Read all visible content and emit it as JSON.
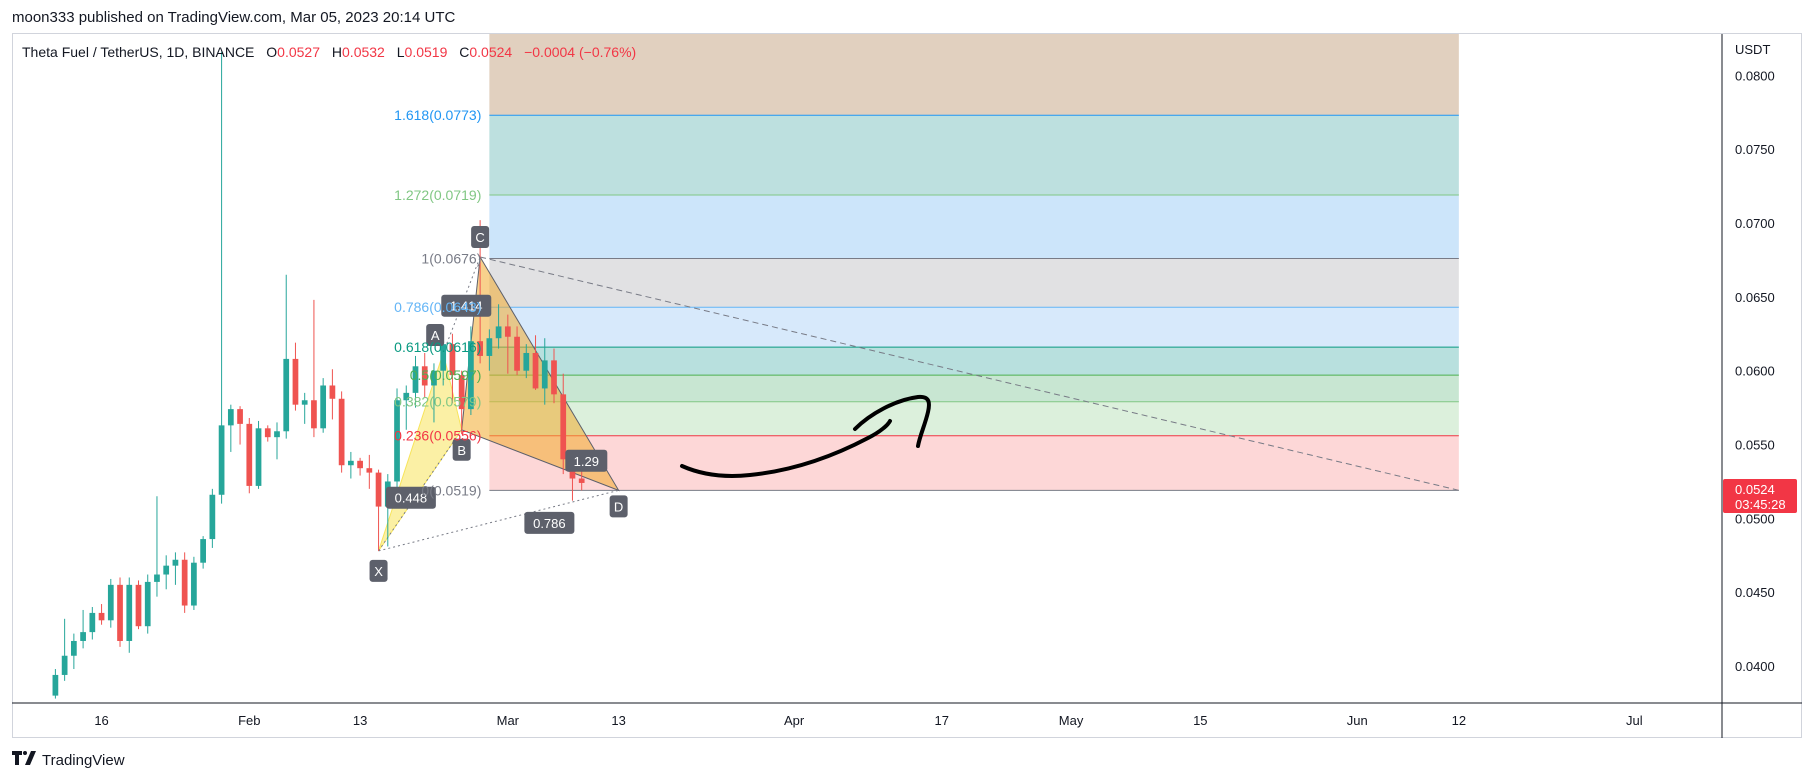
{
  "header": {
    "published_by": "moon333 published on TradingView.com, Mar 05, 2023 20:14 UTC"
  },
  "legend": {
    "symbol": "Theta Fuel / TetherUS, 1D, BINANCE",
    "open_label": "O",
    "open": "0.0527",
    "high_label": "H",
    "high": "0.0532",
    "low_label": "L",
    "low": "0.0519",
    "close_label": "C",
    "close": "0.0524",
    "change": "−0.0004 (−0.76%)"
  },
  "price_axis": {
    "currency": "USDT",
    "ticks": [
      {
        "value": 0.08,
        "label": "0.0800"
      },
      {
        "value": 0.075,
        "label": "0.0750"
      },
      {
        "value": 0.07,
        "label": "0.0700"
      },
      {
        "value": 0.065,
        "label": "0.0650"
      },
      {
        "value": 0.06,
        "label": "0.0600"
      },
      {
        "value": 0.055,
        "label": "0.0550"
      },
      {
        "value": 0.05,
        "label": "0.0500"
      },
      {
        "value": 0.045,
        "label": "0.0450"
      },
      {
        "value": 0.04,
        "label": "0.0400"
      }
    ],
    "last_price_label": "0.0524",
    "countdown_label": "03:45:28",
    "last_price_color": "#f23645"
  },
  "time_axis": {
    "ticks": [
      {
        "day": 16,
        "label": "16"
      },
      {
        "day": 32,
        "label": "Feb"
      },
      {
        "day": 44,
        "label": "13"
      },
      {
        "day": 60,
        "label": "Mar"
      },
      {
        "day": 72,
        "label": "13"
      },
      {
        "day": 91,
        "label": "Apr"
      },
      {
        "day": 107,
        "label": "17"
      },
      {
        "day": 121,
        "label": "May"
      },
      {
        "day": 135,
        "label": "15"
      },
      {
        "day": 152,
        "label": "Jun"
      },
      {
        "day": 163,
        "label": "12"
      },
      {
        "day": 182,
        "label": "Jul"
      }
    ]
  },
  "chart_data": {
    "type": "candlestick",
    "x_unit": "day of year 2023",
    "y_unit": "USDT",
    "ylim": [
      0.0375,
      0.0828
    ],
    "xlim": [
      6.3,
      191.5
    ],
    "candles": [
      {
        "d": 11,
        "o": 0.038,
        "h": 0.0398,
        "l": 0.0378,
        "c": 0.0394
      },
      {
        "d": 12,
        "o": 0.0394,
        "h": 0.0432,
        "l": 0.039,
        "c": 0.0407
      },
      {
        "d": 13,
        "o": 0.0407,
        "h": 0.0422,
        "l": 0.0398,
        "c": 0.0417
      },
      {
        "d": 14,
        "o": 0.0417,
        "h": 0.0438,
        "l": 0.0412,
        "c": 0.0423
      },
      {
        "d": 15,
        "o": 0.0423,
        "h": 0.044,
        "l": 0.0418,
        "c": 0.0436
      },
      {
        "d": 16,
        "o": 0.0436,
        "h": 0.0442,
        "l": 0.0428,
        "c": 0.0431
      },
      {
        "d": 17,
        "o": 0.0431,
        "h": 0.0459,
        "l": 0.0426,
        "c": 0.0455
      },
      {
        "d": 18,
        "o": 0.0455,
        "h": 0.046,
        "l": 0.0413,
        "c": 0.0417
      },
      {
        "d": 19,
        "o": 0.0417,
        "h": 0.046,
        "l": 0.0409,
        "c": 0.0455
      },
      {
        "d": 20,
        "o": 0.0455,
        "h": 0.0458,
        "l": 0.0425,
        "c": 0.0427
      },
      {
        "d": 21,
        "o": 0.0427,
        "h": 0.0462,
        "l": 0.0422,
        "c": 0.0457
      },
      {
        "d": 22,
        "o": 0.0457,
        "h": 0.0515,
        "l": 0.0447,
        "c": 0.0462
      },
      {
        "d": 23,
        "o": 0.0462,
        "h": 0.0475,
        "l": 0.0452,
        "c": 0.0468
      },
      {
        "d": 24,
        "o": 0.0468,
        "h": 0.0477,
        "l": 0.0455,
        "c": 0.0472
      },
      {
        "d": 25,
        "o": 0.0472,
        "h": 0.0477,
        "l": 0.0436,
        "c": 0.0441
      },
      {
        "d": 26,
        "o": 0.0441,
        "h": 0.0474,
        "l": 0.0438,
        "c": 0.047
      },
      {
        "d": 27,
        "o": 0.047,
        "h": 0.0488,
        "l": 0.0466,
        "c": 0.0486
      },
      {
        "d": 28,
        "o": 0.0486,
        "h": 0.052,
        "l": 0.048,
        "c": 0.0516
      },
      {
        "d": 29,
        "o": 0.0516,
        "h": 0.0816,
        "l": 0.051,
        "c": 0.0563
      },
      {
        "d": 30,
        "o": 0.0563,
        "h": 0.0577,
        "l": 0.0545,
        "c": 0.0574
      },
      {
        "d": 31,
        "o": 0.0574,
        "h": 0.0576,
        "l": 0.055,
        "c": 0.0564
      },
      {
        "d": 32,
        "o": 0.0564,
        "h": 0.0568,
        "l": 0.0517,
        "c": 0.0522
      },
      {
        "d": 33,
        "o": 0.0522,
        "h": 0.0566,
        "l": 0.052,
        "c": 0.0561
      },
      {
        "d": 34,
        "o": 0.0561,
        "h": 0.0563,
        "l": 0.0552,
        "c": 0.0555
      },
      {
        "d": 35,
        "o": 0.0555,
        "h": 0.0565,
        "l": 0.054,
        "c": 0.0559
      },
      {
        "d": 36,
        "o": 0.0559,
        "h": 0.0665,
        "l": 0.0554,
        "c": 0.0608
      },
      {
        "d": 37,
        "o": 0.0608,
        "h": 0.0619,
        "l": 0.0573,
        "c": 0.0577
      },
      {
        "d": 38,
        "o": 0.0577,
        "h": 0.0585,
        "l": 0.0564,
        "c": 0.058
      },
      {
        "d": 39,
        "o": 0.058,
        "h": 0.0648,
        "l": 0.0555,
        "c": 0.0561
      },
      {
        "d": 40,
        "o": 0.0561,
        "h": 0.0595,
        "l": 0.0558,
        "c": 0.059
      },
      {
        "d": 41,
        "o": 0.059,
        "h": 0.0601,
        "l": 0.0567,
        "c": 0.0581
      },
      {
        "d": 42,
        "o": 0.0581,
        "h": 0.0586,
        "l": 0.0531,
        "c": 0.0536
      },
      {
        "d": 43,
        "o": 0.0536,
        "h": 0.0545,
        "l": 0.0527,
        "c": 0.0539
      },
      {
        "d": 44,
        "o": 0.0539,
        "h": 0.0541,
        "l": 0.0529,
        "c": 0.0534
      },
      {
        "d": 45,
        "o": 0.0534,
        "h": 0.0543,
        "l": 0.052,
        "c": 0.0531
      },
      {
        "d": 46,
        "o": 0.0531,
        "h": 0.0533,
        "l": 0.0478,
        "c": 0.0508
      },
      {
        "d": 47,
        "o": 0.0508,
        "h": 0.053,
        "l": 0.0481,
        "c": 0.0525
      },
      {
        "d": 48,
        "o": 0.0525,
        "h": 0.0588,
        "l": 0.052,
        "c": 0.058
      },
      {
        "d": 49,
        "o": 0.058,
        "h": 0.059,
        "l": 0.056,
        "c": 0.0585
      },
      {
        "d": 50,
        "o": 0.0585,
        "h": 0.061,
        "l": 0.0575,
        "c": 0.0603
      },
      {
        "d": 51,
        "o": 0.0603,
        "h": 0.0612,
        "l": 0.0582,
        "c": 0.059
      },
      {
        "d": 52,
        "o": 0.059,
        "h": 0.0605,
        "l": 0.0565,
        "c": 0.06
      },
      {
        "d": 53,
        "o": 0.06,
        "h": 0.0622,
        "l": 0.059,
        "c": 0.0618
      },
      {
        "d": 54,
        "o": 0.0618,
        "h": 0.0625,
        "l": 0.0578,
        "c": 0.0597
      },
      {
        "d": 55,
        "o": 0.0597,
        "h": 0.06,
        "l": 0.0557,
        "c": 0.0574
      },
      {
        "d": 56,
        "o": 0.0574,
        "h": 0.063,
        "l": 0.057,
        "c": 0.062
      },
      {
        "d": 57,
        "o": 0.062,
        "h": 0.0702,
        "l": 0.0605,
        "c": 0.061
      },
      {
        "d": 58,
        "o": 0.061,
        "h": 0.0628,
        "l": 0.06,
        "c": 0.0622
      },
      {
        "d": 59,
        "o": 0.0622,
        "h": 0.0645,
        "l": 0.0615,
        "c": 0.063
      },
      {
        "d": 60,
        "o": 0.063,
        "h": 0.0638,
        "l": 0.0598,
        "c": 0.0623
      },
      {
        "d": 61,
        "o": 0.0623,
        "h": 0.063,
        "l": 0.0597,
        "c": 0.06
      },
      {
        "d": 62,
        "o": 0.06,
        "h": 0.0618,
        "l": 0.0595,
        "c": 0.0612
      },
      {
        "d": 63,
        "o": 0.0612,
        "h": 0.0624,
        "l": 0.0587,
        "c": 0.0588
      },
      {
        "d": 64,
        "o": 0.0588,
        "h": 0.0622,
        "l": 0.0577,
        "c": 0.0607
      },
      {
        "d": 65,
        "o": 0.0607,
        "h": 0.0615,
        "l": 0.0578,
        "c": 0.0584
      },
      {
        "d": 66,
        "o": 0.0584,
        "h": 0.0598,
        "l": 0.053,
        "c": 0.054
      },
      {
        "d": 67,
        "o": 0.054,
        "h": 0.0545,
        "l": 0.0512,
        "c": 0.0527
      },
      {
        "d": 68,
        "o": 0.0527,
        "h": 0.0532,
        "l": 0.0519,
        "c": 0.0524
      }
    ]
  },
  "harmonic_pattern": {
    "points": [
      {
        "name": "X",
        "d": 46,
        "p": 0.0478
      },
      {
        "name": "A",
        "d": 53,
        "p": 0.0612
      },
      {
        "name": "B",
        "d": 55,
        "p": 0.056
      },
      {
        "name": "C",
        "d": 57,
        "p": 0.0677
      },
      {
        "name": "D",
        "d": 72,
        "p": 0.0519
      }
    ],
    "ratios": [
      {
        "label": "0.448",
        "d": 49.5,
        "p": 0.0514
      },
      {
        "label": "1.414",
        "d": 55.5,
        "p": 0.0644
      },
      {
        "label": "1.29",
        "d": 68.5,
        "p": 0.0539
      },
      {
        "label": "0.786",
        "d": 64.5,
        "p": 0.0497
      }
    ],
    "xab_color": "#f7e45b",
    "bcd_color": "#f3ac2d"
  },
  "fib_retracement": {
    "d_start": 58,
    "d_end": 163,
    "levels": [
      {
        "ratio_label": "0",
        "price_label": "0.0519",
        "price": 0.0519,
        "color": "#787b86",
        "fill": "#fdd7d7"
      },
      {
        "ratio_label": "0.236",
        "price_label": "0.0556",
        "price": 0.0556,
        "color": "#f23645",
        "fill": "#dcf0dc"
      },
      {
        "ratio_label": "0.382",
        "price_label": "0.0579",
        "price": 0.0579,
        "color": "#81c784",
        "fill": "#c8e6d2"
      },
      {
        "ratio_label": "0.5",
        "price_label": "0.0597",
        "price": 0.0597,
        "color": "#4caf50",
        "fill": "#b8e0de"
      },
      {
        "ratio_label": "0.618",
        "price_label": "0.0616",
        "price": 0.0616,
        "color": "#089981",
        "fill": "#d7e9fb"
      },
      {
        "ratio_label": "0.786",
        "price_label": "0.0643",
        "price": 0.0643,
        "color": "#64b5f6",
        "fill": "#e1e1e3"
      },
      {
        "ratio_label": "1",
        "price_label": "0.0676",
        "price": 0.0676,
        "color": "#787b86",
        "fill": "#cce5fa"
      },
      {
        "ratio_label": "1.272",
        "price_label": "0.0719",
        "price": 0.0719,
        "color": "#81c784",
        "fill": "#bde0df"
      },
      {
        "ratio_label": "1.618",
        "price_label": "0.0773",
        "price": 0.0773,
        "color": "#2196f3",
        "fill": "#e1d0bf"
      }
    ],
    "top_price": 0.0828
  },
  "trend_line": {
    "d1": 57,
    "p1": 0.0677,
    "d2": 163,
    "p2": 0.0519
  },
  "colors": {
    "up": "#26a69a",
    "down": "#ef5350",
    "grid": "#f0f3fa",
    "axis_line": "#d1d4dc"
  },
  "footer": {
    "brand": "TradingView"
  }
}
